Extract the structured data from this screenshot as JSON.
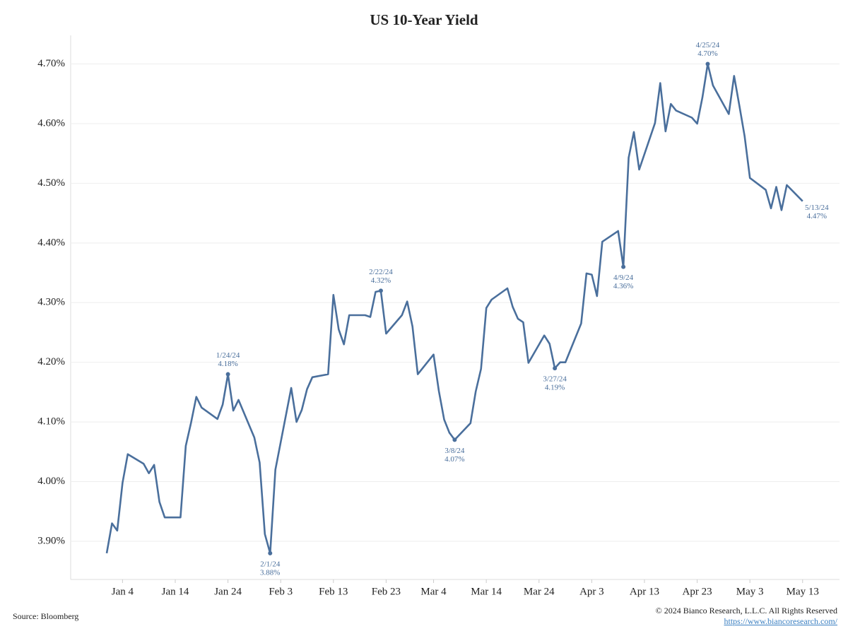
{
  "chart_data": {
    "type": "line",
    "title": "US 10-Year Yield",
    "x": [
      "Jan 1",
      "Jan 2",
      "Jan 3",
      "Jan 4",
      "Jan 5",
      "Jan 8",
      "Jan 9",
      "Jan 10",
      "Jan 11",
      "Jan 12",
      "Jan 15",
      "Jan 16",
      "Jan 17",
      "Jan 18",
      "Jan 19",
      "Jan 22",
      "Jan 23",
      "Jan 24",
      "Jan 25",
      "Jan 26",
      "Jan 29",
      "Jan 30",
      "Jan 31",
      "Feb 1",
      "Feb 2",
      "Feb 5",
      "Feb 6",
      "Feb 7",
      "Feb 8",
      "Feb 9",
      "Feb 12",
      "Feb 13",
      "Feb 14",
      "Feb 15",
      "Feb 16",
      "Feb 19",
      "Feb 20",
      "Feb 21",
      "Feb 22",
      "Feb 23",
      "Feb 26",
      "Feb 27",
      "Feb 28",
      "Mar 1",
      "Mar 4",
      "Mar 5",
      "Mar 6",
      "Mar 7",
      "Mar 8",
      "Mar 11",
      "Mar 12",
      "Mar 13",
      "Mar 14",
      "Mar 15",
      "Mar 18",
      "Mar 19",
      "Mar 20",
      "Mar 21",
      "Mar 22",
      "Mar 25",
      "Mar 26",
      "Mar 27",
      "Mar 28",
      "Mar 29",
      "Apr 1",
      "Apr 2",
      "Apr 3",
      "Apr 4",
      "Apr 5",
      "Apr 8",
      "Apr 9",
      "Apr 10",
      "Apr 11",
      "Apr 12",
      "Apr 15",
      "Apr 16",
      "Apr 17",
      "Apr 18",
      "Apr 19",
      "Apr 22",
      "Apr 23",
      "Apr 24",
      "Apr 25",
      "Apr 26",
      "Apr 29",
      "Apr 30",
      "May 1",
      "May 2",
      "May 3",
      "May 6",
      "May 7",
      "May 8",
      "May 9",
      "May 10",
      "May 13"
    ],
    "series": [
      {
        "color": "#4a6f9c",
        "values": [
          3.88,
          3.93,
          3.918,
          3.998,
          4.046,
          4.03,
          4.014,
          4.028,
          3.966,
          3.94,
          3.94,
          4.06,
          4.099,
          4.142,
          4.124,
          4.105,
          4.129,
          4.18,
          4.119,
          4.137,
          4.074,
          4.032,
          3.912,
          3.88,
          4.02,
          4.157,
          4.1,
          4.12,
          4.155,
          4.175,
          4.18,
          4.313,
          4.255,
          4.23,
          4.279,
          4.279,
          4.276,
          4.318,
          4.32,
          4.248,
          4.279,
          4.302,
          4.26,
          4.18,
          4.213,
          4.152,
          4.104,
          4.082,
          4.07,
          4.098,
          4.151,
          4.189,
          4.291,
          4.305,
          4.324,
          4.293,
          4.273,
          4.267,
          4.199,
          4.245,
          4.231,
          4.19,
          4.2,
          4.2,
          4.265,
          4.349,
          4.347,
          4.311,
          4.402,
          4.42,
          4.36,
          4.543,
          4.586,
          4.523,
          4.601,
          4.668,
          4.587,
          4.633,
          4.622,
          4.61,
          4.6,
          4.644,
          4.7,
          4.664,
          4.616,
          4.68,
          4.63,
          4.579,
          4.509,
          4.489,
          4.458,
          4.494,
          4.455,
          4.497,
          4.47
        ]
      }
    ],
    "annotations": [
      {
        "x": "Jan 24",
        "value": 4.18,
        "label": "1/24/24",
        "value_label": "4.18%"
      },
      {
        "x": "Feb 1",
        "value": 3.88,
        "label": "2/1/24",
        "value_label": "3.88%"
      },
      {
        "x": "Feb 22",
        "value": 4.32,
        "label": "2/22/24",
        "value_label": "4.32%"
      },
      {
        "x": "Mar 8",
        "value": 4.07,
        "label": "3/8/24",
        "value_label": "4.07%"
      },
      {
        "x": "Mar 27",
        "value": 4.19,
        "label": "3/27/24",
        "value_label": "4.19%"
      },
      {
        "x": "Apr 9",
        "value": 4.36,
        "label": "4/9/24",
        "value_label": "4.36%"
      },
      {
        "x": "Apr 25",
        "value": 4.7,
        "label": "4/25/24",
        "value_label": "4.70%"
      },
      {
        "x": "May 13",
        "value": 4.47,
        "label": "5/13/24",
        "value_label": "4.47%"
      }
    ],
    "xlim": [
      "Jan 1",
      "May 20"
    ],
    "xticks": [
      "Jan 4",
      "Jan 14",
      "Jan 24",
      "Feb 3",
      "Feb 13",
      "Feb 23",
      "Mar 4",
      "Mar 14",
      "Mar 24",
      "Apr 3",
      "Apr 13",
      "Apr 23",
      "May 3",
      "May 13"
    ],
    "ylim": [
      3.836,
      4.748
    ],
    "yticks": [
      {
        "value": 3.9,
        "label": "3.90%"
      },
      {
        "value": 4.0,
        "label": "4.00%"
      },
      {
        "value": 4.1,
        "label": "4.10%"
      },
      {
        "value": 4.2,
        "label": "4.20%"
      },
      {
        "value": 4.3,
        "label": "4.30%"
      },
      {
        "value": 4.4,
        "label": "4.40%"
      },
      {
        "value": 4.5,
        "label": "4.50%"
      },
      {
        "value": 4.6,
        "label": "4.60%"
      },
      {
        "value": 4.7,
        "label": "4.70%"
      }
    ],
    "grid": true,
    "source": "Source: Bloomberg",
    "copyright": "© 2024 Bianco Research, L.L.C. All Rights Reserved",
    "link": "https://www.biancoresearch.com/"
  }
}
